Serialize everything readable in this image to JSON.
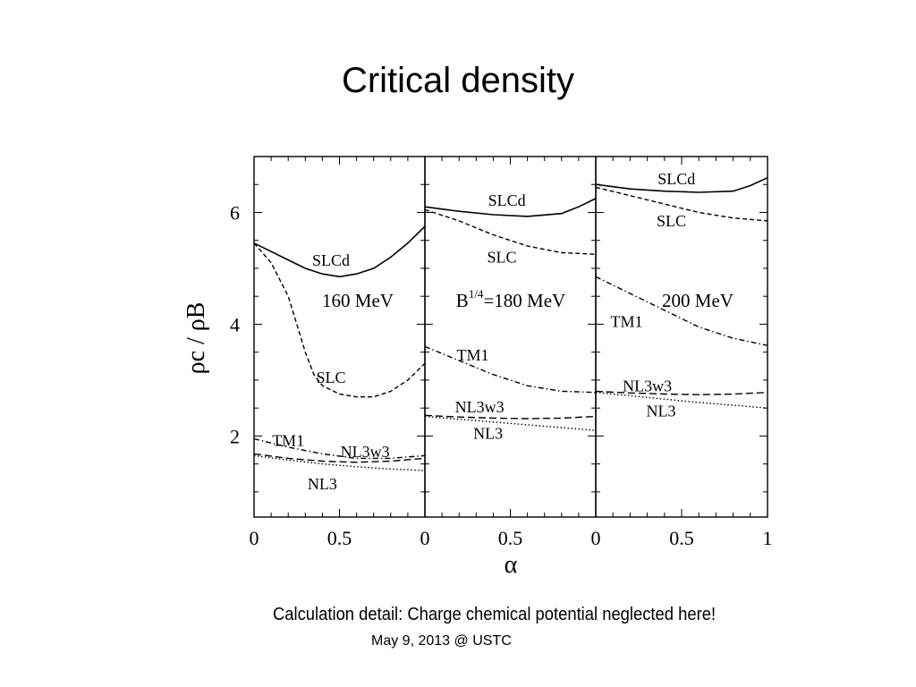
{
  "slide": {
    "title": "Critical density",
    "note": "Calculation detail: Charge chemical potential neglected here!",
    "footer_date": "May 9, 2013 @ USTC"
  },
  "chart_data": {
    "type": "line",
    "xlabel": "α",
    "ylabel": "ρc / ρB",
    "ylim": [
      0.55,
      7.0
    ],
    "yticks": [
      2,
      4,
      6
    ],
    "xtick_labels": [
      "0",
      "0.5",
      "0",
      "0.5",
      "0",
      "0.5",
      "1"
    ],
    "panels": [
      {
        "label": "160 MeV",
        "xlim": [
          0,
          1
        ],
        "series": [
          {
            "name": "SLCd",
            "style": "solid",
            "x": [
              0,
              0.1,
              0.2,
              0.3,
              0.4,
              0.5,
              0.6,
              0.7,
              0.8,
              0.9,
              1.0
            ],
            "y": [
              5.45,
              5.3,
              5.15,
              5.0,
              4.9,
              4.85,
              4.9,
              5.0,
              5.2,
              5.45,
              5.75
            ]
          },
          {
            "name": "SLC",
            "style": "dashed",
            "x": [
              0,
              0.1,
              0.2,
              0.25,
              0.3,
              0.35,
              0.4,
              0.5,
              0.6,
              0.7,
              0.8,
              0.9,
              1.0
            ],
            "y": [
              5.45,
              5.1,
              4.5,
              4.0,
              3.5,
              3.1,
              2.9,
              2.75,
              2.7,
              2.7,
              2.8,
              3.0,
              3.3
            ]
          },
          {
            "name": "TM1",
            "style": "dashdot",
            "x": [
              0,
              0.2,
              0.4,
              0.6,
              0.8,
              1.0
            ],
            "y": [
              1.95,
              1.8,
              1.68,
              1.6,
              1.6,
              1.65
            ]
          },
          {
            "name": "NL3w3",
            "style": "longdash",
            "x": [
              0,
              0.2,
              0.4,
              0.6,
              0.8,
              1.0
            ],
            "y": [
              1.68,
              1.6,
              1.55,
              1.53,
              1.55,
              1.6
            ]
          },
          {
            "name": "NL3",
            "style": "dotted",
            "x": [
              0,
              0.2,
              0.4,
              0.6,
              0.8,
              1.0
            ],
            "y": [
              1.65,
              1.57,
              1.5,
              1.45,
              1.41,
              1.38
            ]
          }
        ]
      },
      {
        "label": "B1/4=180 MeV",
        "xlim": [
          0,
          1
        ],
        "series": [
          {
            "name": "SLCd",
            "style": "solid",
            "x": [
              0,
              0.2,
              0.4,
              0.6,
              0.8,
              0.9,
              1.0
            ],
            "y": [
              6.1,
              6.02,
              5.96,
              5.93,
              5.98,
              6.1,
              6.25
            ]
          },
          {
            "name": "SLC",
            "style": "dashed",
            "x": [
              0,
              0.2,
              0.4,
              0.6,
              0.8,
              1.0
            ],
            "y": [
              6.05,
              5.85,
              5.6,
              5.4,
              5.28,
              5.25
            ]
          },
          {
            "name": "TM1",
            "style": "dashdot",
            "x": [
              0,
              0.2,
              0.4,
              0.6,
              0.8,
              1.0
            ],
            "y": [
              3.6,
              3.35,
              3.1,
              2.9,
              2.8,
              2.78
            ]
          },
          {
            "name": "NL3w3",
            "style": "longdash",
            "x": [
              0,
              0.2,
              0.4,
              0.6,
              0.8,
              1.0
            ],
            "y": [
              2.37,
              2.34,
              2.32,
              2.31,
              2.32,
              2.35
            ]
          },
          {
            "name": "NL3",
            "style": "dotted",
            "x": [
              0,
              0.2,
              0.4,
              0.6,
              0.8,
              1.0
            ],
            "y": [
              2.35,
              2.3,
              2.25,
              2.2,
              2.15,
              2.1
            ]
          }
        ]
      },
      {
        "label": "200 MeV",
        "xlim": [
          0,
          1
        ],
        "series": [
          {
            "name": "SLCd",
            "style": "solid",
            "x": [
              0,
              0.2,
              0.4,
              0.6,
              0.8,
              0.9,
              1.0
            ],
            "y": [
              6.5,
              6.42,
              6.38,
              6.36,
              6.38,
              6.48,
              6.62
            ]
          },
          {
            "name": "SLC",
            "style": "dashed",
            "x": [
              0,
              0.2,
              0.4,
              0.6,
              0.8,
              1.0
            ],
            "y": [
              6.45,
              6.3,
              6.15,
              6.0,
              5.9,
              5.85
            ]
          },
          {
            "name": "TM1",
            "style": "dashdot",
            "x": [
              0,
              0.2,
              0.4,
              0.6,
              0.8,
              1.0
            ],
            "y": [
              4.85,
              4.55,
              4.25,
              3.95,
              3.75,
              3.62
            ]
          },
          {
            "name": "NL3w3",
            "style": "longdash",
            "x": [
              0,
              0.2,
              0.4,
              0.6,
              0.8,
              1.0
            ],
            "y": [
              2.8,
              2.77,
              2.75,
              2.74,
              2.75,
              2.78
            ]
          },
          {
            "name": "NL3",
            "style": "dotted",
            "x": [
              0,
              0.2,
              0.4,
              0.6,
              0.8,
              1.0
            ],
            "y": [
              2.78,
              2.72,
              2.66,
              2.6,
              2.55,
              2.5
            ]
          }
        ]
      }
    ],
    "curve_labels": [
      {
        "panel": 0,
        "text": "SLCd",
        "x": 0.45,
        "y": 5.05
      },
      {
        "panel": 0,
        "text": "SLC",
        "x": 0.45,
        "y": 2.95
      },
      {
        "panel": 0,
        "text": "TM1",
        "x": 0.2,
        "y": 1.82
      },
      {
        "panel": 0,
        "text": "NL3w3",
        "x": 0.65,
        "y": 1.62
      },
      {
        "panel": 0,
        "text": "NL3",
        "x": 0.4,
        "y": 1.05
      },
      {
        "panel": 1,
        "text": "SLCd",
        "x": 0.48,
        "y": 6.12
      },
      {
        "panel": 1,
        "text": "SLC",
        "x": 0.45,
        "y": 5.1
      },
      {
        "panel": 1,
        "text": "TM1",
        "x": 0.28,
        "y": 3.35
      },
      {
        "panel": 1,
        "text": "NL3w3",
        "x": 0.32,
        "y": 2.42
      },
      {
        "panel": 1,
        "text": "NL3",
        "x": 0.37,
        "y": 1.95
      },
      {
        "panel": 2,
        "text": "SLCd",
        "x": 0.47,
        "y": 6.5
      },
      {
        "panel": 2,
        "text": "SLC",
        "x": 0.44,
        "y": 5.75
      },
      {
        "panel": 2,
        "text": "TM1",
        "x": 0.18,
        "y": 3.95
      },
      {
        "panel": 2,
        "text": "NL3w3",
        "x": 0.3,
        "y": 2.8
      },
      {
        "panel": 2,
        "text": "NL3",
        "x": 0.38,
        "y": 2.35
      }
    ]
  }
}
